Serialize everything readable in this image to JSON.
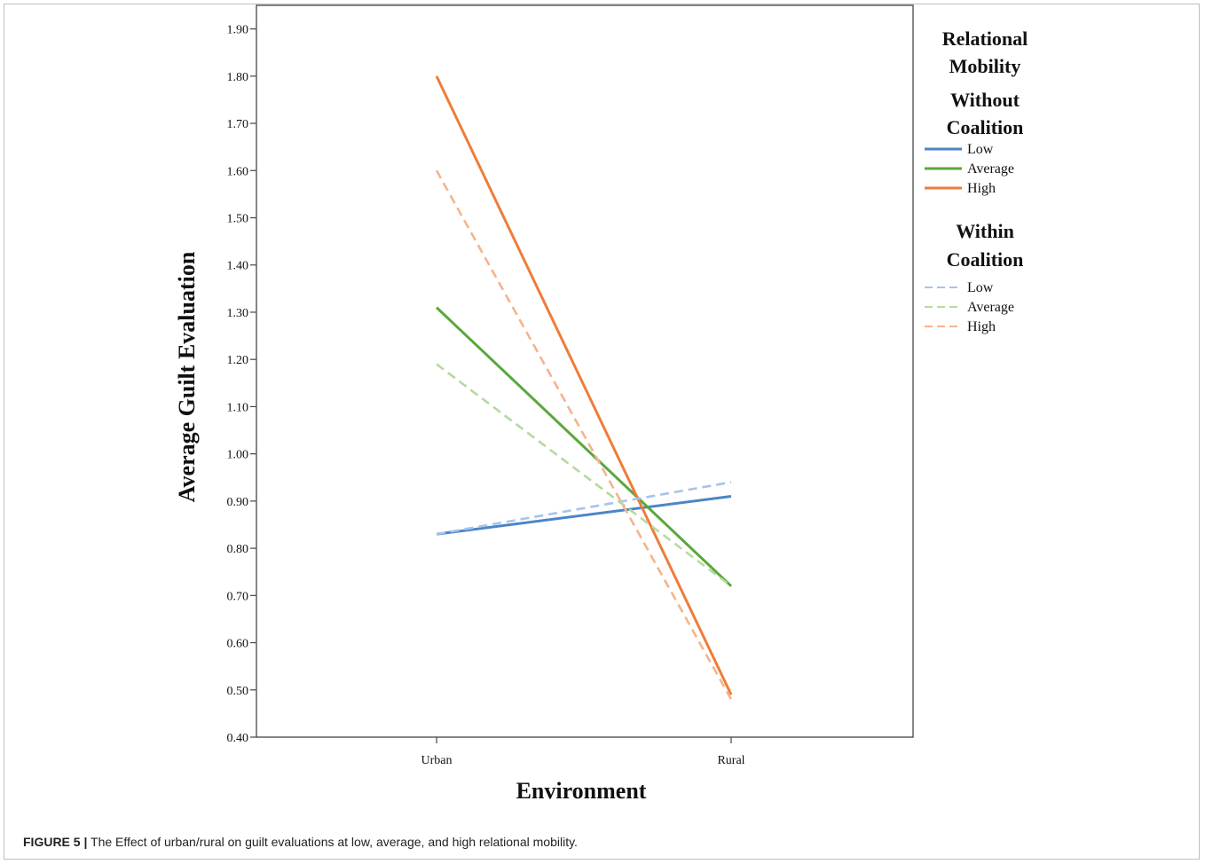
{
  "caption": {
    "label": "FIGURE 5 |",
    "text": " The Effect of urban/rural on guilt evaluations at low, average, and high relational mobility."
  },
  "chart_data": {
    "type": "line",
    "xlabel": "Environment",
    "ylabel": "Average Guilt Evaluation",
    "categories": [
      "Urban",
      "Rural"
    ],
    "ylim": [
      0.4,
      1.95
    ],
    "yticks": [
      "0.40",
      "0.50",
      "0.60",
      "0.70",
      "0.80",
      "0.90",
      "1.00",
      "1.10",
      "1.20",
      "1.30",
      "1.40",
      "1.50",
      "1.60",
      "1.70",
      "1.80",
      "1.90"
    ],
    "grid": false,
    "legend_position": "right",
    "legend": {
      "title": [
        "Relational",
        "Mobility"
      ],
      "groups": [
        {
          "heading": [
            "Without",
            "Coalition"
          ],
          "items": [
            "Low",
            "Average",
            "High"
          ]
        },
        {
          "heading": [
            "Within",
            "Coalition"
          ],
          "items": [
            "Low",
            "Average",
            "High"
          ]
        }
      ]
    },
    "series": [
      {
        "name": "Low",
        "group": "Without Coalition",
        "values": [
          0.83,
          0.91
        ],
        "color": "#4a86c8",
        "dashed": false
      },
      {
        "name": "Average",
        "group": "Without Coalition",
        "values": [
          1.31,
          0.72
        ],
        "color": "#5aa73c",
        "dashed": false
      },
      {
        "name": "High",
        "group": "Without Coalition",
        "values": [
          1.8,
          0.49
        ],
        "color": "#ee7d3a",
        "dashed": false
      },
      {
        "name": "Low",
        "group": "Within Coalition",
        "values": [
          0.83,
          0.94
        ],
        "color": "#a6c4e8",
        "dashed": true
      },
      {
        "name": "Average",
        "group": "Within Coalition",
        "values": [
          1.19,
          0.72
        ],
        "color": "#b5da9e",
        "dashed": true
      },
      {
        "name": "High",
        "group": "Within Coalition",
        "values": [
          1.6,
          0.48
        ],
        "color": "#f4b48b",
        "dashed": true
      }
    ]
  }
}
